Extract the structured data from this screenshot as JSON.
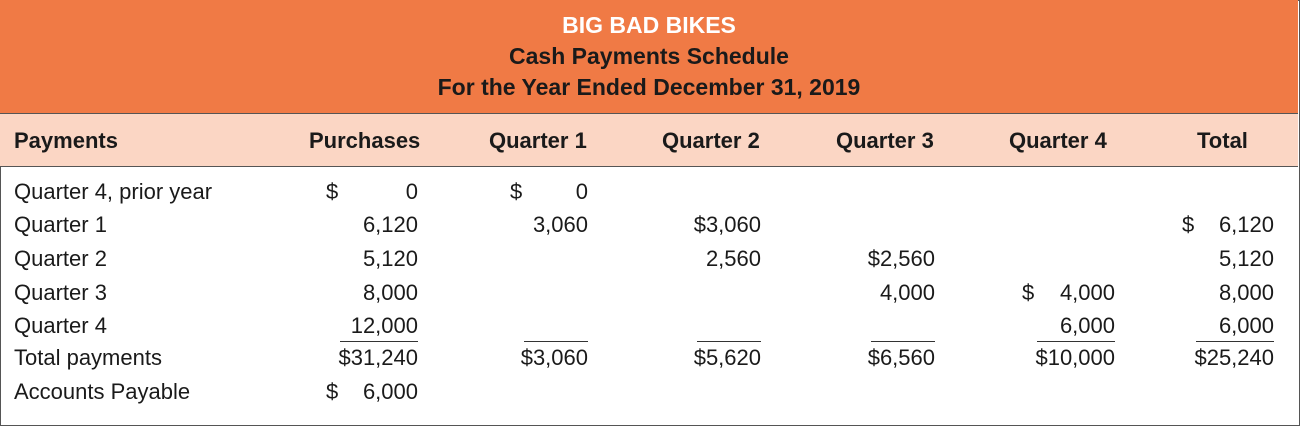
{
  "title": {
    "company": "BIG BAD BIKES",
    "schedule": "Cash Payments Schedule",
    "period": "For the Year Ended December 31, 2019"
  },
  "headers": [
    "Payments",
    "Purchases",
    "Quarter 1",
    "Quarter 2",
    "Quarter 3",
    "Quarter 4",
    "Total"
  ],
  "rows": [
    {
      "label": "Quarter 4, prior year",
      "purchases": "0",
      "q1": "0",
      "q2": "",
      "q3": "",
      "q4": "",
      "total": ""
    },
    {
      "label": "Quarter 1",
      "purchases": "6,120",
      "q1": "3,060",
      "q2": "$3,060",
      "q3": "",
      "q4": "",
      "total": "6,120"
    },
    {
      "label": "Quarter 2",
      "purchases": "5,120",
      "q1": "",
      "q2": "2,560",
      "q3": "$2,560",
      "q4": "",
      "total": "5,120"
    },
    {
      "label": "Quarter 3",
      "purchases": "8,000",
      "q1": "",
      "q2": "",
      "q3": "4,000",
      "q4": "4,000",
      "total": "8,000"
    },
    {
      "label": "Quarter 4",
      "purchases": "12,000",
      "q1": "",
      "q2": "",
      "q3": "",
      "q4": "6,000",
      "total": "6,000"
    },
    {
      "label": "Total payments",
      "purchases": "$31,240",
      "q1": "$3,060",
      "q2": "$5,620",
      "q3": "$6,560",
      "q4": "$10,000",
      "total": "$25,240"
    },
    {
      "label": "Accounts Payable",
      "purchases": "6,000",
      "q1": "",
      "q2": "",
      "q3": "",
      "q4": "",
      "total": ""
    }
  ],
  "currency_symbol": "$",
  "colors": {
    "title_band": "#f07a45",
    "header_band": "#fbd6c4"
  }
}
